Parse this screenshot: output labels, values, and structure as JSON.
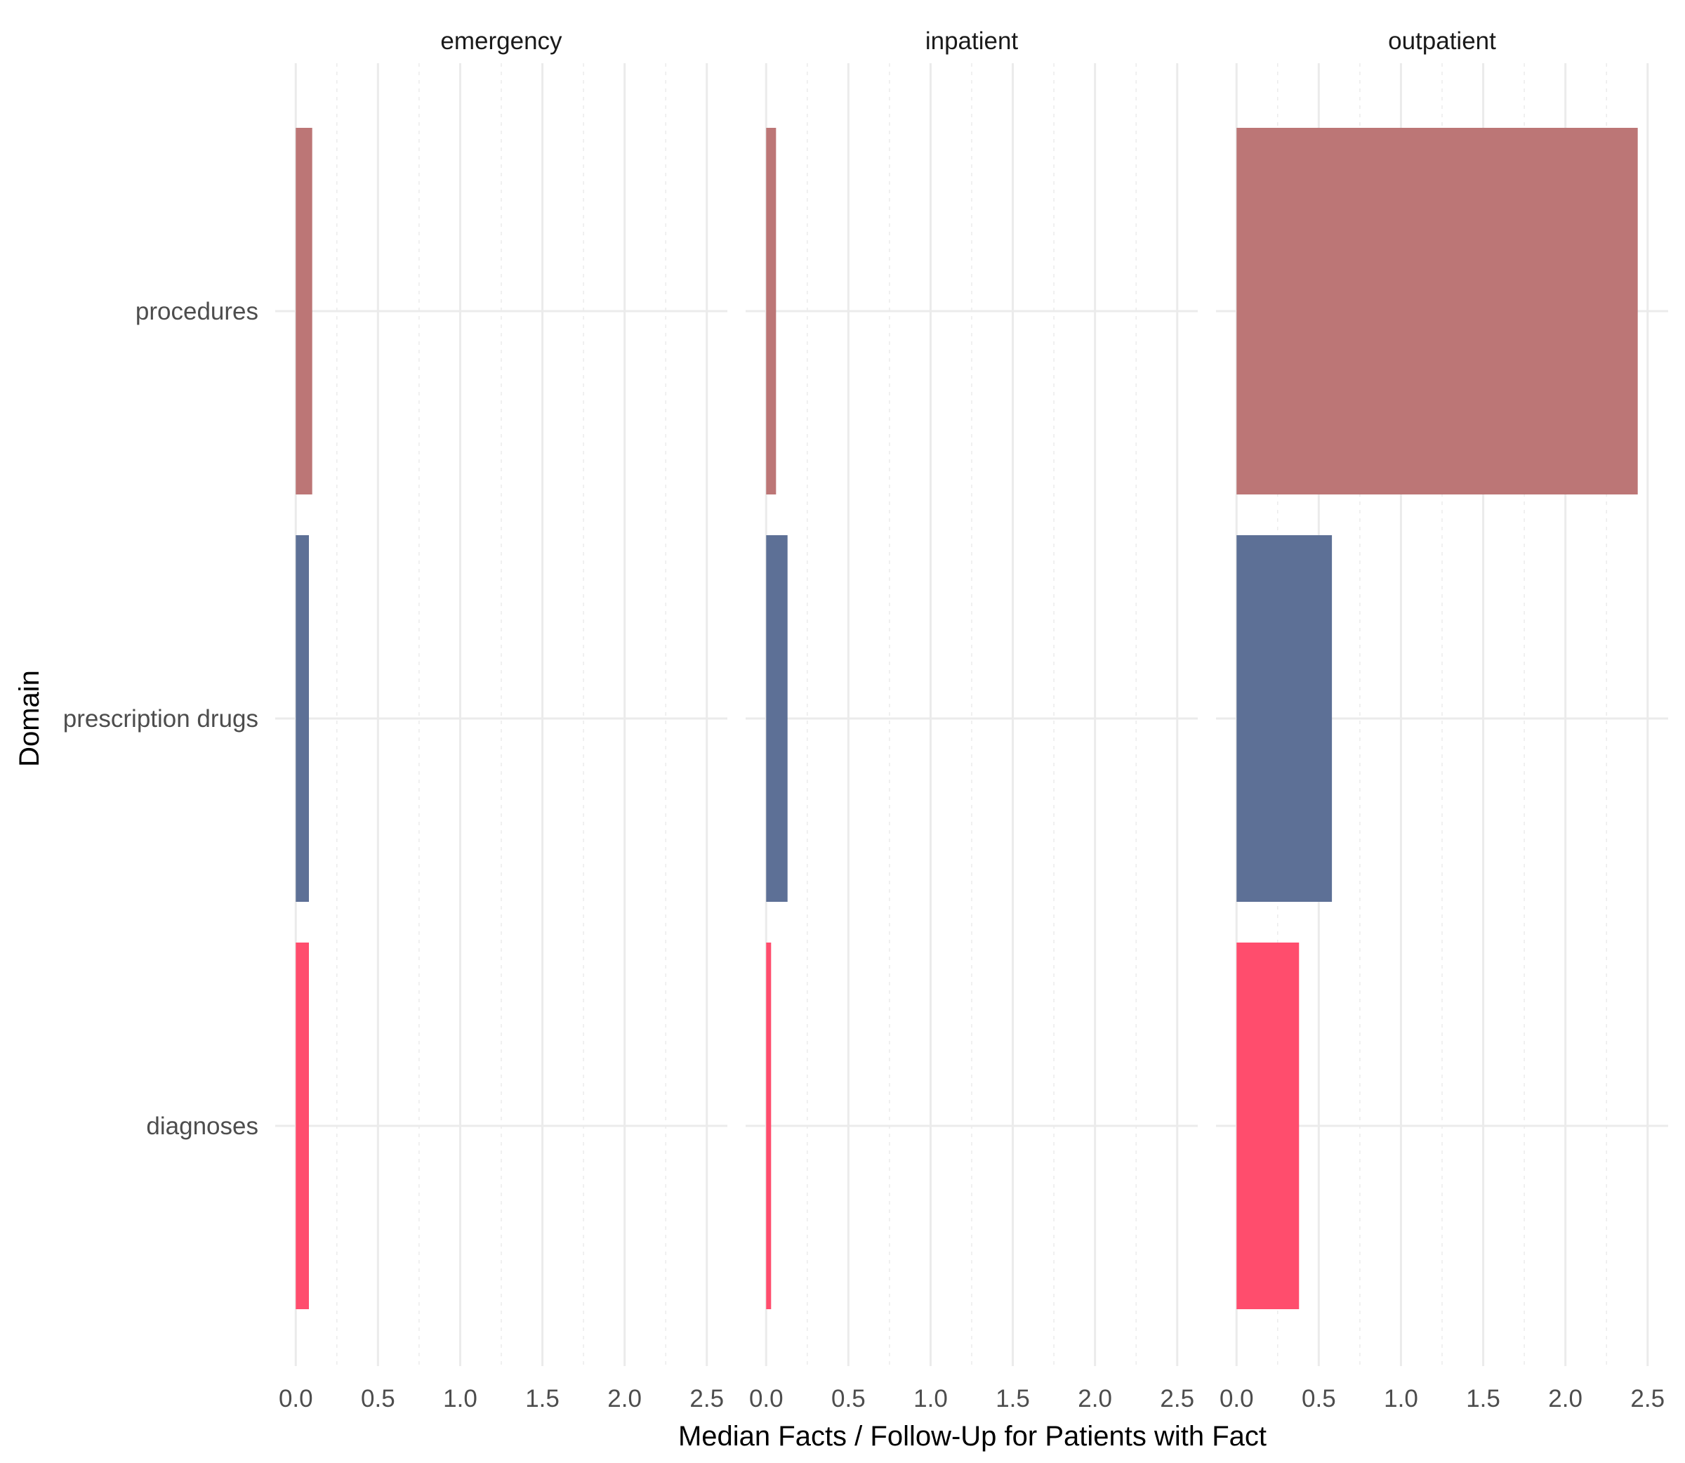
{
  "chart_data": {
    "type": "bar",
    "orientation": "horizontal",
    "facets": [
      "emergency",
      "inpatient",
      "outpatient"
    ],
    "categories": [
      "procedures",
      "prescription drugs",
      "diagnoses"
    ],
    "xlabel": "Median Facts / Follow-Up for Patients with Fact",
    "ylabel": "Domain",
    "xlim": [
      0,
      2.5
    ],
    "x_ticks": [
      "0.0",
      "0.5",
      "1.0",
      "1.5",
      "2.0",
      "2.5"
    ],
    "grid": true,
    "legend": "none",
    "colors": {
      "procedures": "#BC7676",
      "prescription drugs": "#5D7096",
      "diagnoses": "#FF4D6D"
    },
    "values": {
      "emergency": {
        "procedures": 0.1,
        "prescription drugs": 0.08,
        "diagnoses": 0.08
      },
      "inpatient": {
        "procedures": 0.06,
        "prescription drugs": 0.13,
        "diagnoses": 0.03
      },
      "outpatient": {
        "procedures": 2.44,
        "prescription drugs": 0.58,
        "diagnoses": 0.38
      }
    }
  }
}
